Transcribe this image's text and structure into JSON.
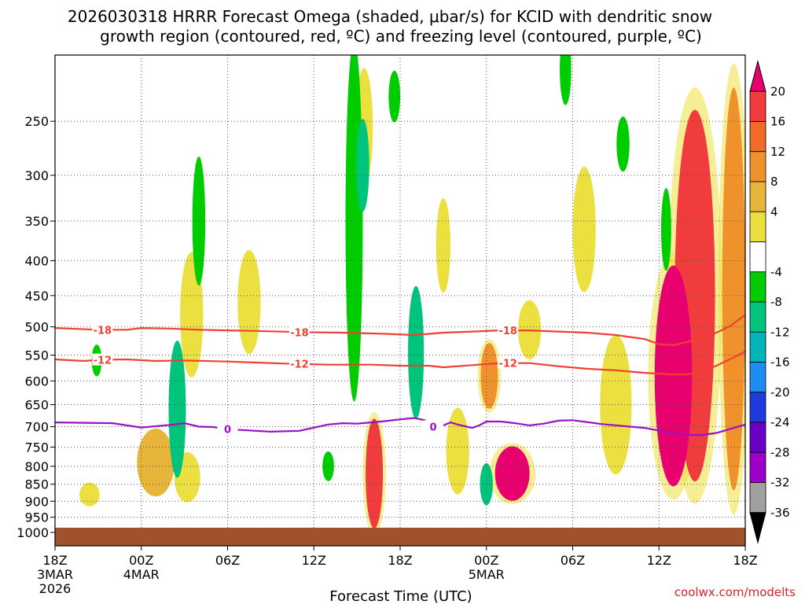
{
  "chart_data": {
    "type": "heatmap",
    "title_line1": "2026030318 HRRR Forecast Omega (shaded, μbar/s) for KCID with dendritic snow",
    "title_line2": "growth region (contoured, red, ºC) and freezing level (contoured, purple, ºC)",
    "xlabel": "Forecast Time (UTC)",
    "ylabel": "",
    "credit": "coolwx.com/modelts",
    "x_range_hours": [
      0,
      48
    ],
    "y_range_hpa": [
      1000,
      200
    ],
    "x_ticks": [
      {
        "hour": 0,
        "label": "18Z",
        "sub1": "3MAR",
        "sub2": "2026"
      },
      {
        "hour": 6,
        "label": "00Z",
        "sub1": "4MAR",
        "sub2": ""
      },
      {
        "hour": 12,
        "label": "06Z",
        "sub1": "",
        "sub2": ""
      },
      {
        "hour": 18,
        "label": "12Z",
        "sub1": "",
        "sub2": ""
      },
      {
        "hour": 24,
        "label": "18Z",
        "sub1": "",
        "sub2": ""
      },
      {
        "hour": 30,
        "label": "00Z",
        "sub1": "5MAR",
        "sub2": ""
      },
      {
        "hour": 36,
        "label": "06Z",
        "sub1": "",
        "sub2": ""
      },
      {
        "hour": 42,
        "label": "12Z",
        "sub1": "",
        "sub2": ""
      },
      {
        "hour": 48,
        "label": "18Z",
        "sub1": "",
        "sub2": ""
      }
    ],
    "y_ticks": [
      250,
      300,
      350,
      400,
      450,
      500,
      550,
      600,
      650,
      700,
      750,
      800,
      850,
      900,
      950,
      1000
    ],
    "colorbar": {
      "labels": [
        "20",
        "16",
        "12",
        "8",
        "4",
        "-4",
        "-8",
        "-12",
        "-16",
        "-20",
        "-24",
        "-28",
        "-32",
        "-36"
      ],
      "colors": [
        "#e8006f",
        "#f03c3c",
        "#f06a28",
        "#f0922c",
        "#e7b53a",
        "#ece040",
        "#ffffff",
        "#00cc00",
        "#00c47c",
        "#00b4b8",
        "#1e8cf0",
        "#1e3cdc",
        "#6a00c8",
        "#9c00c8",
        "#a0a0a0",
        "#000000"
      ]
    },
    "contours": [
      {
        "name": "dgz-top-minus18",
        "label": "-18",
        "color": "#ef4036",
        "points": [
          [
            0,
            502
          ],
          [
            1,
            503
          ],
          [
            3,
            505
          ],
          [
            5,
            505
          ],
          [
            6,
            502
          ],
          [
            8,
            503
          ],
          [
            10,
            505
          ],
          [
            12,
            506
          ],
          [
            14,
            507
          ],
          [
            17,
            509
          ],
          [
            20,
            510
          ],
          [
            23,
            512
          ],
          [
            25,
            514
          ],
          [
            27,
            510
          ],
          [
            29,
            508
          ],
          [
            31,
            506
          ],
          [
            33,
            506
          ],
          [
            35,
            508
          ],
          [
            37,
            510
          ],
          [
            39,
            514
          ],
          [
            41,
            521
          ],
          [
            42,
            530
          ],
          [
            43,
            532
          ],
          [
            44,
            526
          ],
          [
            45,
            519
          ],
          [
            46,
            510
          ],
          [
            47,
            498
          ],
          [
            48,
            480
          ]
        ]
      },
      {
        "name": "dgz-bottom-minus12",
        "label": "-12",
        "color": "#ef4036",
        "points": [
          [
            0,
            558
          ],
          [
            2,
            561
          ],
          [
            3,
            559
          ],
          [
            5,
            558
          ],
          [
            7,
            561
          ],
          [
            9,
            560
          ],
          [
            12,
            562
          ],
          [
            14,
            564
          ],
          [
            16,
            566
          ],
          [
            19,
            568
          ],
          [
            22,
            568
          ],
          [
            24,
            570
          ],
          [
            26,
            570
          ],
          [
            27,
            573
          ],
          [
            29,
            569
          ],
          [
            31,
            565
          ],
          [
            33,
            565
          ],
          [
            35,
            571
          ],
          [
            37,
            576
          ],
          [
            39,
            579
          ],
          [
            41,
            584
          ],
          [
            43,
            587
          ],
          [
            44,
            587
          ],
          [
            45,
            580
          ],
          [
            46,
            570
          ],
          [
            47,
            557
          ],
          [
            48,
            543
          ]
        ]
      },
      {
        "name": "freezing-level-0",
        "label": "0",
        "color": "#9912c4",
        "points": [
          [
            0,
            690
          ],
          [
            2,
            691
          ],
          [
            4,
            692
          ],
          [
            6,
            702
          ],
          [
            8,
            696
          ],
          [
            9,
            692
          ],
          [
            10,
            700
          ],
          [
            11,
            701
          ],
          [
            12,
            706
          ],
          [
            13,
            708
          ],
          [
            15,
            712
          ],
          [
            17,
            710
          ],
          [
            19,
            695
          ],
          [
            20,
            692
          ],
          [
            21,
            693
          ],
          [
            22,
            690
          ],
          [
            23,
            687
          ],
          [
            24,
            683
          ],
          [
            25,
            680
          ],
          [
            25.7,
            685
          ],
          [
            26,
            692
          ],
          [
            26.5,
            700
          ],
          [
            27,
            697
          ],
          [
            27.5,
            690
          ],
          [
            28,
            695
          ],
          [
            29,
            703
          ],
          [
            29.5,
            697
          ],
          [
            30,
            688
          ],
          [
            31,
            688
          ],
          [
            32,
            692
          ],
          [
            33,
            697
          ],
          [
            34,
            693
          ],
          [
            35,
            686
          ],
          [
            36,
            685
          ],
          [
            38,
            694
          ],
          [
            40,
            700
          ],
          [
            41,
            703
          ],
          [
            43,
            716
          ],
          [
            44,
            720
          ],
          [
            45,
            720
          ],
          [
            46,
            715
          ],
          [
            47,
            705
          ],
          [
            48,
            695
          ]
        ]
      }
    ],
    "omega_features": [
      {
        "name": "omega-pos-a",
        "hour": 2.4,
        "p": 880,
        "w": 1.4,
        "h": 70,
        "value": 4
      },
      {
        "name": "omega-pos-b",
        "hour": 7.0,
        "p": 790,
        "w": 2.6,
        "h": 180,
        "value": 6
      },
      {
        "name": "omega-pos-c",
        "hour": 9.5,
        "p": 480,
        "w": 1.6,
        "h": 200,
        "value": 4
      },
      {
        "name": "omega-pos-d",
        "hour": 9.2,
        "p": 830,
        "w": 1.8,
        "h": 140,
        "value": 4
      },
      {
        "name": "omega-pos-e",
        "hour": 13.5,
        "p": 460,
        "w": 1.6,
        "h": 160,
        "value": 4
      },
      {
        "name": "omega-pos-f",
        "hour": 21.5,
        "p": 255,
        "w": 1.2,
        "h": 100,
        "value": 4
      },
      {
        "name": "omega-pos-g",
        "hour": 22.2,
        "p": 820,
        "w": 1.2,
        "h": 300,
        "value": 12
      },
      {
        "name": "omega-pos-h",
        "hour": 27.0,
        "p": 380,
        "w": 1.0,
        "h": 120,
        "value": 4
      },
      {
        "name": "omega-pos-i",
        "hour": 28.0,
        "p": 760,
        "w": 1.6,
        "h": 220,
        "value": 4
      },
      {
        "name": "omega-pos-j",
        "hour": 30.2,
        "p": 590,
        "w": 1.2,
        "h": 130,
        "value": 8
      },
      {
        "name": "omega-pos-k",
        "hour": 31.8,
        "p": 820,
        "w": 2.4,
        "h": 150,
        "value": 16
      },
      {
        "name": "omega-pos-l",
        "hour": 33.0,
        "p": 505,
        "w": 1.6,
        "h": 100,
        "value": 4
      },
      {
        "name": "omega-pos-m",
        "hour": 36.8,
        "p": 360,
        "w": 1.6,
        "h": 150,
        "value": 4
      },
      {
        "name": "omega-pos-n",
        "hour": 39.0,
        "p": 650,
        "w": 2.2,
        "h": 300,
        "value": 4
      },
      {
        "name": "omega-pos-o",
        "hour": 43.0,
        "p": 590,
        "w": 2.6,
        "h": 420,
        "value": 16
      },
      {
        "name": "omega-pos-p",
        "hour": 44.5,
        "p": 450,
        "w": 2.8,
        "h": 500,
        "value": 12
      },
      {
        "name": "omega-pos-q",
        "hour": 47.2,
        "p": 440,
        "w": 1.6,
        "h": 520,
        "value": 8
      },
      {
        "name": "omega-neg-a",
        "hour": 10.0,
        "p": 350,
        "w": 0.9,
        "h": 150,
        "value": -8
      },
      {
        "name": "omega-neg-b",
        "hour": 2.9,
        "p": 560,
        "w": 0.7,
        "h": 60,
        "value": -8
      },
      {
        "name": "omega-neg-c",
        "hour": 8.5,
        "p": 660,
        "w": 1.2,
        "h": 300,
        "value": -12
      },
      {
        "name": "omega-neg-d",
        "hour": 20.8,
        "p": 350,
        "w": 1.2,
        "h": 380,
        "value": -8
      },
      {
        "name": "omega-neg-e",
        "hour": 21.4,
        "p": 290,
        "w": 0.9,
        "h": 90,
        "value": -12
      },
      {
        "name": "omega-neg-f",
        "hour": 23.6,
        "p": 230,
        "w": 0.8,
        "h": 40,
        "value": -8
      },
      {
        "name": "omega-neg-g",
        "hour": 25.1,
        "p": 545,
        "w": 1.1,
        "h": 240,
        "value": -12
      },
      {
        "name": "omega-neg-h",
        "hour": 19.0,
        "p": 800,
        "w": 0.8,
        "h": 80,
        "value": -8
      },
      {
        "name": "omega-neg-i",
        "hour": 30.0,
        "p": 850,
        "w": 0.9,
        "h": 120,
        "value": -12
      },
      {
        "name": "omega-neg-j",
        "hour": 42.5,
        "p": 360,
        "w": 0.7,
        "h": 100,
        "value": -8
      },
      {
        "name": "omega-neg-k",
        "hour": 39.5,
        "p": 270,
        "w": 0.9,
        "h": 50,
        "value": -8
      },
      {
        "name": "omega-neg-l",
        "hour": 35.5,
        "p": 210,
        "w": 0.8,
        "h": 50,
        "value": -8
      }
    ]
  }
}
